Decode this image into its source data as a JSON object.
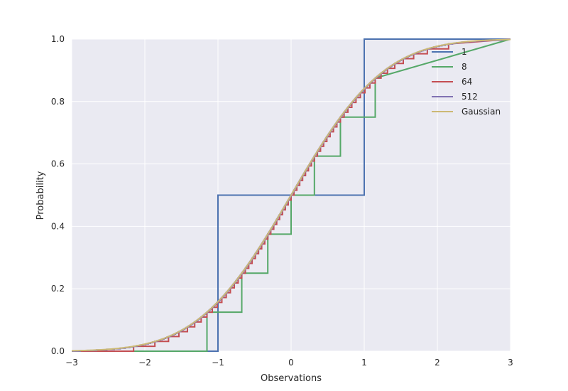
{
  "chart_data": {
    "type": "line",
    "title": "",
    "xlabel": "Observations",
    "ylabel": "Probability",
    "xlim": [
      -3,
      3
    ],
    "ylim": [
      0,
      1
    ],
    "xticks": [
      -3,
      -2,
      -1,
      0,
      1,
      2,
      3
    ],
    "xtick_labels": [
      "−3",
      "−2",
      "−1",
      "0",
      "1",
      "2",
      "3"
    ],
    "yticks": [
      0,
      0.2,
      0.4,
      0.6,
      0.8,
      1.0
    ],
    "ytick_labels": [
      "0.0",
      "0.2",
      "0.4",
      "0.6",
      "0.8",
      "1.0"
    ],
    "grid": true,
    "legend_position": "top-right",
    "background_color": "#eaeaf2",
    "series": [
      {
        "name": "1",
        "color": "#4c72b0",
        "steps": 1
      },
      {
        "name": "8",
        "color": "#55a868",
        "steps": 8
      },
      {
        "name": "64",
        "color": "#c44e52",
        "steps": 64
      },
      {
        "name": "512",
        "color": "#8172b2",
        "steps": 512
      },
      {
        "name": "Gaussian",
        "color": "#ccb974",
        "steps": 0
      }
    ]
  }
}
